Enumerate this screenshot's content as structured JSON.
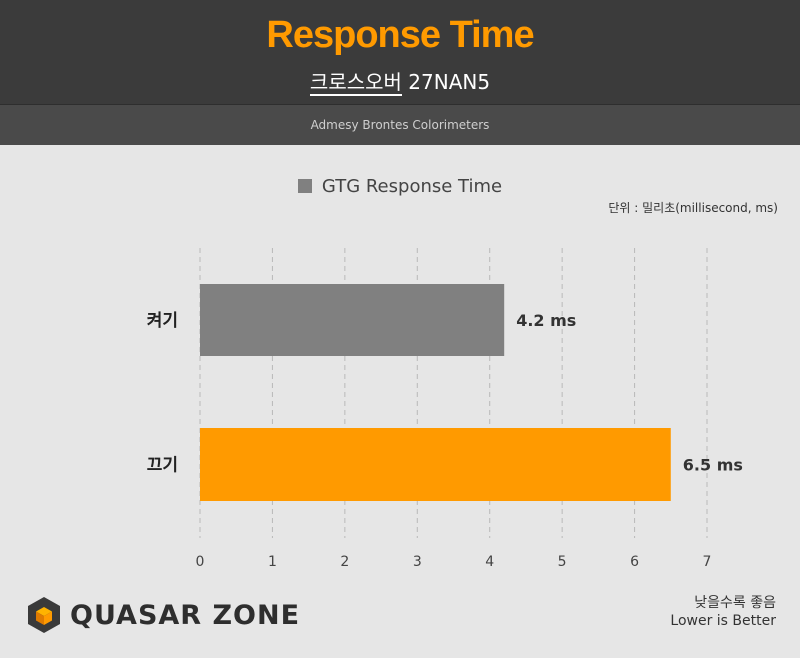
{
  "header": {
    "title": "Response Time",
    "subtitle_underlined": "크로스오버",
    "subtitle_rest": " 27NAN5",
    "source": "Admesy Brontes Colorimeters"
  },
  "legend": {
    "label": "GTG Response Time"
  },
  "unit_label": "단위 : 밀리초(millisecond, ms)",
  "footer": {
    "logo_text": "QUASAR ZONE",
    "note_ko": "낮을수록 좋음",
    "note_en": "Lower is Better"
  },
  "colors": {
    "title": "#ff9a00",
    "bar_on": "#808080",
    "bar_off": "#ff9a00",
    "grid": "#b9b9b9"
  },
  "chart_data": {
    "type": "bar",
    "orientation": "horizontal",
    "categories": [
      "켜기",
      "끄기"
    ],
    "series": [
      {
        "name": "GTG Response Time",
        "values": [
          4.2,
          6.5
        ]
      }
    ],
    "value_labels": [
      "4.2 ms",
      "6.5 ms"
    ],
    "bar_colors": [
      "#808080",
      "#ff9a00"
    ],
    "xlim": [
      0,
      7
    ],
    "xticks": [
      0,
      1,
      2,
      3,
      4,
      5,
      6,
      7
    ],
    "grid": true,
    "legend_position": "top-center"
  }
}
